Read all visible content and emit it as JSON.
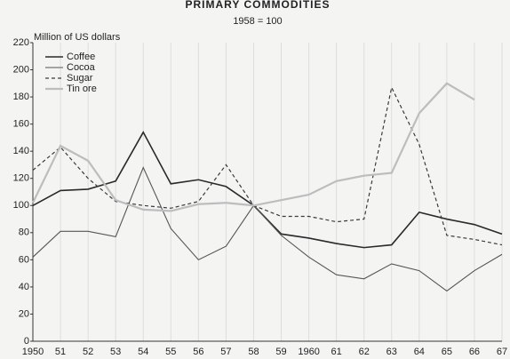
{
  "chart_data": {
    "type": "line",
    "title": "PRIMARY COMMODITIES",
    "subtitle": "1958 = 100",
    "y_label": "Million of US dollars",
    "categories": [
      "1950",
      "51",
      "52",
      "53",
      "54",
      "55",
      "56",
      "57",
      "58",
      "59",
      "1960",
      "61",
      "62",
      "63",
      "64",
      "65",
      "66",
      "67"
    ],
    "series": [
      {
        "name": "Coffee",
        "color": "#2a2a2a",
        "width": 1.6,
        "dash": "none",
        "values": [
          100,
          111,
          112,
          118,
          154,
          116,
          119,
          114,
          100,
          79,
          76,
          72,
          69,
          71,
          95,
          90,
          86,
          79
        ]
      },
      {
        "name": "Cocoa",
        "color": "#555555",
        "width": 1.1,
        "dash": "none",
        "values": [
          62,
          81,
          81,
          77,
          128,
          83,
          60,
          70,
          100,
          78,
          62,
          49,
          46,
          57,
          52,
          37,
          52,
          64
        ]
      },
      {
        "name": "Sugar",
        "color": "#3a3a3a",
        "width": 1.2,
        "dash": "4 3",
        "values": [
          126,
          143,
          120,
          103,
          100,
          98,
          103,
          130,
          100,
          92,
          92,
          88,
          90,
          187,
          145,
          78,
          75,
          71
        ]
      },
      {
        "name": "Tin ore",
        "color": "#bdbdbd",
        "width": 2.2,
        "dash": "none",
        "values": [
          102,
          144,
          133,
          104,
          97,
          96,
          101,
          102,
          100,
          104,
          108,
          118,
          122,
          124,
          168,
          190,
          178,
          null
        ]
      }
    ],
    "ylim": [
      0,
      220
    ],
    "yticks": [
      0,
      20,
      40,
      60,
      80,
      100,
      120,
      140,
      160,
      180,
      200,
      220
    ],
    "grid": true,
    "legend": "upper left"
  }
}
